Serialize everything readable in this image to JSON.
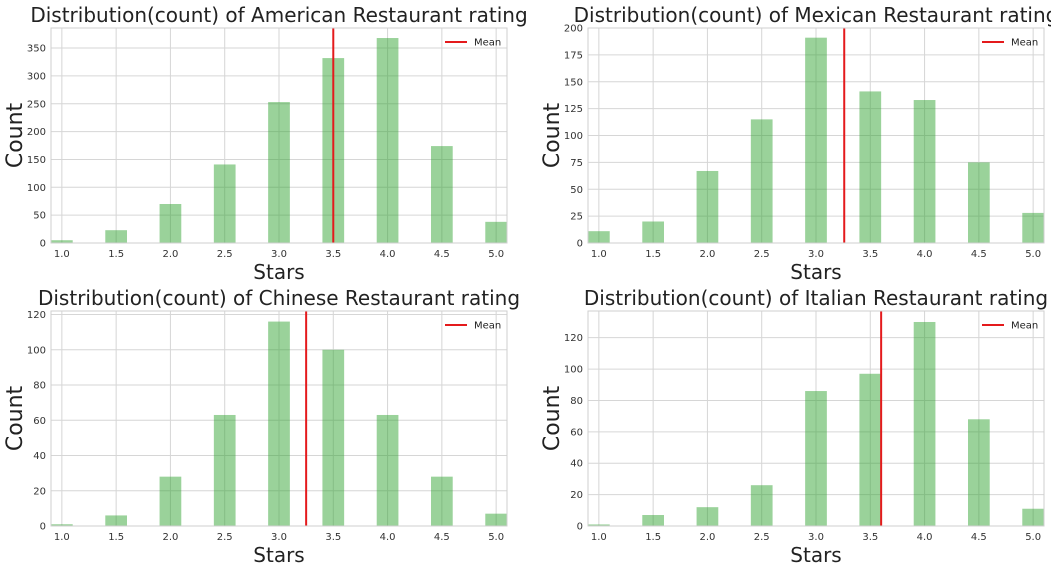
{
  "chart_data": [
    {
      "type": "bar",
      "title": "Distribution(count) of American Restaurant rating",
      "xlabel": "Stars",
      "ylabel": "Count",
      "x": [
        1.0,
        1.5,
        2.0,
        2.5,
        3.0,
        3.5,
        4.0,
        4.5,
        5.0
      ],
      "values": [
        5,
        23,
        70,
        141,
        253,
        332,
        368,
        174,
        38
      ],
      "xticks": [
        "1.0",
        "1.5",
        "2.0",
        "2.5",
        "3.0",
        "3.5",
        "4.0",
        "4.5",
        "5.0"
      ],
      "yticks": [
        0,
        50,
        100,
        150,
        200,
        250,
        300,
        350
      ],
      "ylim": [
        0,
        386
      ],
      "xlim": [
        0.9,
        5.1
      ],
      "mean": 3.5,
      "legend": [
        "Mean"
      ],
      "legend_position": "top-right",
      "grid": true,
      "bar_color": "#2ca02c",
      "mean_color": "#e41a1c"
    },
    {
      "type": "bar",
      "title": "Distribution(count) of Mexican Restaurant rating",
      "xlabel": "Stars",
      "ylabel": "Count",
      "x": [
        1.0,
        1.5,
        2.0,
        2.5,
        3.0,
        3.5,
        4.0,
        4.5,
        5.0
      ],
      "values": [
        11,
        20,
        67,
        115,
        191,
        141,
        133,
        75,
        28
      ],
      "xticks": [
        "1.0",
        "1.5",
        "2.0",
        "2.5",
        "3.0",
        "3.5",
        "4.0",
        "4.5",
        "5.0"
      ],
      "yticks": [
        0,
        25,
        50,
        75,
        100,
        125,
        150,
        175,
        200
      ],
      "ylim": [
        0,
        200
      ],
      "xlim": [
        0.9,
        5.1
      ],
      "mean": 3.26,
      "legend": [
        "Mean"
      ],
      "legend_position": "top-right",
      "grid": true,
      "bar_color": "#2ca02c",
      "mean_color": "#e41a1c"
    },
    {
      "type": "bar",
      "title": "Distribution(count) of Chinese Restaurant rating",
      "xlabel": "Stars",
      "ylabel": "Count",
      "x": [
        1.0,
        1.5,
        2.0,
        2.5,
        3.0,
        3.5,
        4.0,
        4.5,
        5.0
      ],
      "values": [
        1,
        6,
        28,
        63,
        116,
        100,
        63,
        28,
        7
      ],
      "xticks": [
        "1.0",
        "1.5",
        "2.0",
        "2.5",
        "3.0",
        "3.5",
        "4.0",
        "4.5",
        "5.0"
      ],
      "yticks": [
        0,
        20,
        40,
        60,
        80,
        100,
        120
      ],
      "ylim": [
        0,
        122
      ],
      "xlim": [
        0.9,
        5.1
      ],
      "mean": 3.25,
      "legend": [
        "Mean"
      ],
      "legend_position": "top-right",
      "grid": true,
      "bar_color": "#2ca02c",
      "mean_color": "#e41a1c"
    },
    {
      "type": "bar",
      "title": "Distribution(count) of Italian Restaurant rating",
      "xlabel": "Stars",
      "ylabel": "Count",
      "x": [
        1.0,
        1.5,
        2.0,
        2.5,
        3.0,
        3.5,
        4.0,
        4.5,
        5.0
      ],
      "values": [
        1,
        7,
        12,
        26,
        86,
        97,
        130,
        68,
        11
      ],
      "xticks": [
        "1.0",
        "1.5",
        "2.0",
        "2.5",
        "3.0",
        "3.5",
        "4.0",
        "4.5",
        "5.0"
      ],
      "yticks": [
        0,
        20,
        40,
        60,
        80,
        100,
        120
      ],
      "ylim": [
        0,
        137
      ],
      "xlim": [
        0.9,
        5.1
      ],
      "mean": 3.6,
      "legend": [
        "Mean"
      ],
      "legend_position": "top-right",
      "grid": true,
      "bar_color": "#2ca02c",
      "mean_color": "#e41a1c"
    }
  ]
}
